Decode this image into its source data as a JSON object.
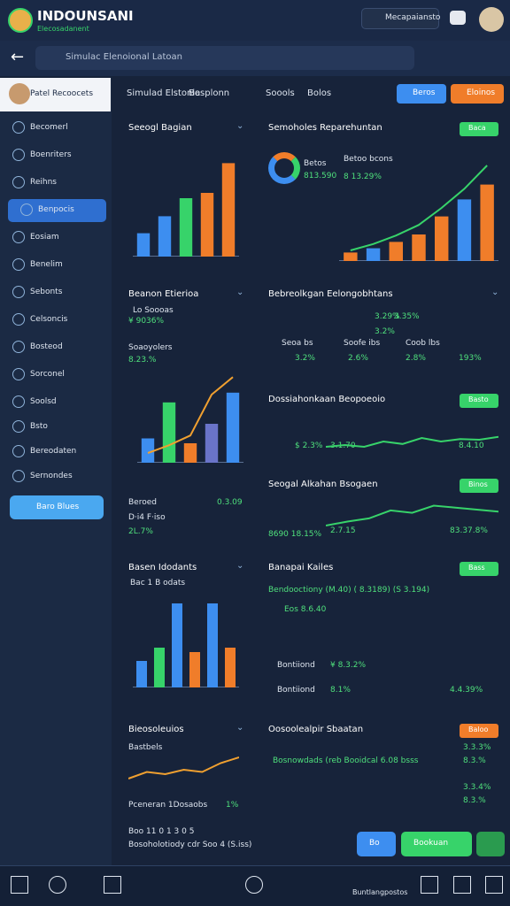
{
  "header": {
    "brand": "INDOUNSANI",
    "tagline": "Elecosadanent",
    "user": "Mecapaiansto"
  },
  "search": {
    "placeholder": "Simulac Elenoional Latoan"
  },
  "sidebar": {
    "profile": "Patel Recoocets",
    "items": [
      "Becomerl",
      "Boenriters",
      "Reihns",
      "Benpocis",
      "Eosiam",
      "Benelim",
      "Sebonts",
      "Celsoncis",
      "Bosteod",
      "Sorconel",
      "Soolsd",
      "Bsto",
      "Bereodaten",
      "Sernondes"
    ],
    "active": 3,
    "button": "Baro Blues"
  },
  "tabs": [
    "Simulad Elstonia",
    "Besplonn",
    "Soools",
    "Bolos"
  ],
  "actions": [
    "Beros",
    "Eloinos"
  ],
  "cards": [
    {
      "title": "Seeogl Bagian",
      "chart": {
        "ylim": [
          0,
          100
        ],
        "values": [
          22,
          38,
          55,
          60,
          88
        ],
        "colors": [
          "#3d8ef0",
          "#3d8ef0",
          "#37d36a",
          "#f07d2a",
          "#f07d2a"
        ]
      }
    },
    {
      "title": "Semoholes Reparehuntan",
      "badge": "Baca",
      "texts": [
        "Betos",
        "813.590",
        "Betoo bcons",
        "8 13.29%"
      ],
      "chart": {
        "ylim": [
          0,
          100
        ],
        "values": [
          8,
          12,
          18,
          25,
          42,
          58,
          72
        ],
        "colors": [
          "#f07d2a",
          "#3d8ef0",
          "#f07d2a",
          "#f07d2a",
          "#f07d2a",
          "#3d8ef0",
          "#f07d2a"
        ],
        "line": [
          10,
          16,
          24,
          34,
          50,
          68,
          90
        ]
      }
    },
    {
      "title": "Beanon Etierioa",
      "texts": [
        "Lo Soooas",
        "¥ 9036%",
        "Soaoyolers",
        "8.23.%",
        "Beroed",
        "0.3.09",
        "D·i4 F·iso",
        "2L.7%"
      ],
      "chart": {
        "ylim": [
          0,
          100
        ],
        "values": [
          25,
          62,
          20,
          40,
          72
        ],
        "colors": [
          "#3d8ef0",
          "#37d36a",
          "#f07d2a",
          "#6a74c9",
          "#3d8ef0"
        ],
        "line": [
          10,
          18,
          28,
          70,
          88
        ]
      }
    },
    {
      "title": "Bebreolkgan Eelongobhtans",
      "texts": [
        "3.29%",
        "3.2%",
        "3.35%",
        "Seoa bs",
        "Soofe ibs",
        "Coob lbs",
        "3.2%",
        "2.6%",
        "2.8%",
        "193%"
      ]
    },
    {
      "title": "Dossiahonkaan Beopoeoio",
      "badge": "Basto",
      "texts": [
        "$ 2.3%",
        "3.1.70",
        "8.4.10"
      ],
      "chart": {
        "ylim": [
          0,
          100
        ],
        "line": [
          30,
          35,
          30,
          45,
          38,
          55,
          45,
          52,
          50,
          58
        ]
      }
    },
    {
      "title": "Seogal Alkahan Bsogaen",
      "badge": "Binos",
      "texts": [
        "8690 18.15%",
        "2.7.15",
        "83.37.8%"
      ],
      "chart": {
        "ylim": [
          0,
          100
        ],
        "line": [
          20,
          30,
          38,
          58,
          52,
          70,
          65,
          60,
          55
        ]
      }
    },
    {
      "title": "Basen Idodants",
      "texts": [
        "Bac 1 B odats"
      ],
      "chart": {
        "ylim": [
          0,
          100
        ],
        "values": [
          30,
          45,
          95,
          40,
          95,
          45
        ],
        "colors": [
          "#3d8ef0",
          "#37d36a",
          "#3d8ef0",
          "#f07d2a",
          "#3d8ef0",
          "#f07d2a"
        ]
      }
    },
    {
      "title": "Banapai Kailes",
      "badge": "Bass",
      "texts": [
        "Bendooctiony (M.40) ( 8.3189) (S 3.194)",
        "Eos 8.6.40",
        "Bontiiond",
        "¥ 8.3.2%",
        "Bontiiond",
        "8.1%",
        "4.4.39%"
      ]
    },
    {
      "title": "Bieosoleuios",
      "texts": [
        "Bastbels",
        "Pceneran 1Dosaobs",
        "1%",
        "Boo 11 0 1 3 0 5",
        "Bosoholotiody cdr Soo 4 (S.iss)"
      ],
      "chart": {
        "ylim": [
          0,
          100
        ],
        "line": [
          20,
          35,
          30,
          40,
          35,
          55,
          68
        ]
      }
    },
    {
      "title": "Oosoolealpir Sbaatan",
      "badge": "Baloo",
      "texts": [
        "Bosnowdads (reb Booidcal 6.08 bsss",
        "3.3.3%",
        "8.3.%",
        "3.3.4%",
        "8.3.%"
      ]
    }
  ],
  "footer_buttons": [
    "Bo",
    "Bookuan"
  ],
  "nav": {
    "label": "Buntlangpostos"
  }
}
